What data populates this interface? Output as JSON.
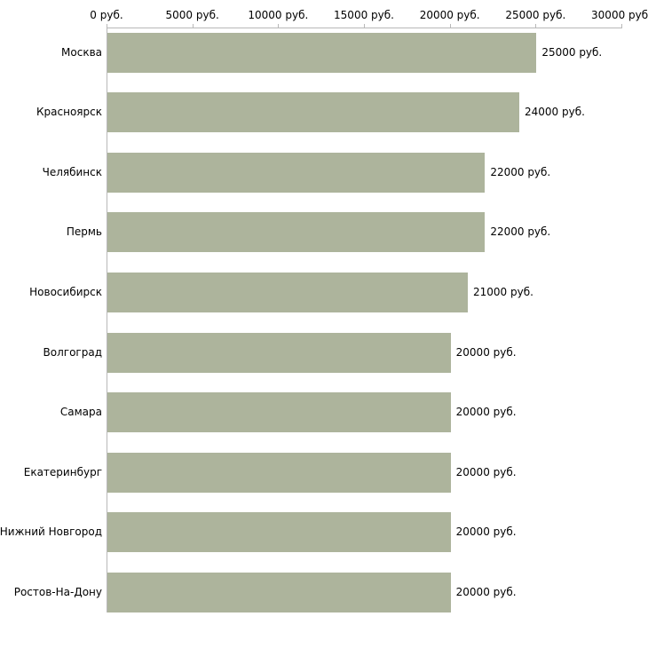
{
  "chart_data": {
    "type": "bar",
    "orientation": "horizontal",
    "title": "",
    "xlabel": "",
    "ylabel": "",
    "categories": [
      "Москва",
      "Красноярск",
      "Челябинск",
      "Пермь",
      "Новосибирск",
      "Волгоград",
      "Самара",
      "Екатеринбург",
      "Нижний Новгород",
      "Ростов-На-Дону"
    ],
    "values": [
      25000,
      24000,
      22000,
      22000,
      21000,
      20000,
      20000,
      20000,
      20000,
      20000
    ],
    "value_labels": [
      "25000 руб.",
      "24000 руб.",
      "22000 руб.",
      "22000 руб.",
      "21000 руб.",
      "20000 руб.",
      "20000 руб.",
      "20000 руб.",
      "20000 руб.",
      "20000 руб."
    ],
    "x_axis": {
      "max": 30000,
      "ticks": [
        0,
        5000,
        10000,
        15000,
        20000,
        25000,
        30000
      ],
      "tick_labels": [
        "0 руб.",
        "5000 руб.",
        "10000 руб.",
        "15000 руб.",
        "20000 руб.",
        "25000 руб.",
        "30000 руб."
      ]
    },
    "legend": "none",
    "grid": "off",
    "colors": {
      "bar": "#adb49c",
      "axis": "#b8b8b8",
      "text": "#000000",
      "background": "#ffffff"
    }
  }
}
